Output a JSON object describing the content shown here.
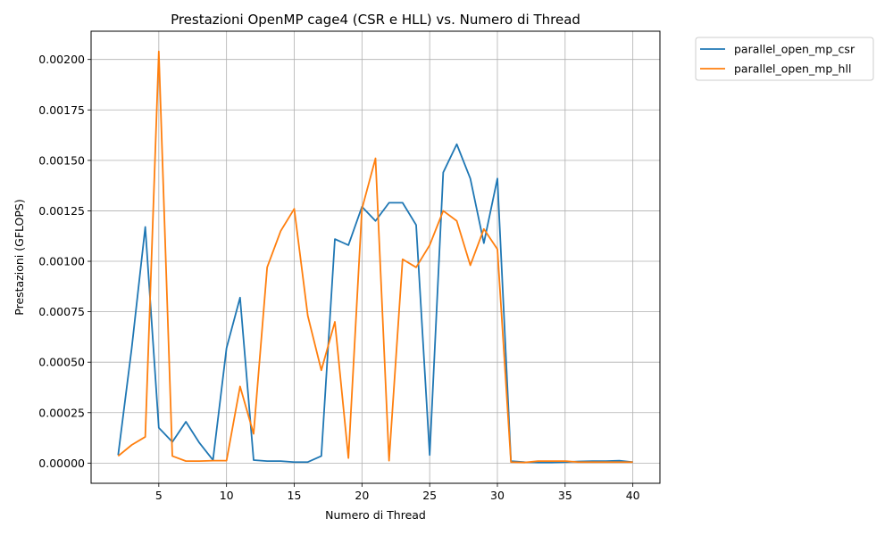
{
  "chart_data": {
    "type": "line",
    "title": "Prestazioni OpenMP cage4 (CSR e HLL) vs. Numero di Thread",
    "xlabel": "Numero di Thread",
    "ylabel": "Prestazioni (GFLOPS)",
    "xlim": [
      0,
      42
    ],
    "ylim": [
      -0.0001,
      0.00214
    ],
    "xticks": [
      5,
      10,
      15,
      20,
      25,
      30,
      35,
      40
    ],
    "xtick_labels": [
      "5",
      "10",
      "15",
      "20",
      "25",
      "30",
      "35",
      "40"
    ],
    "yticks": [
      0,
      0.00025,
      0.0005,
      0.00075,
      0.001,
      0.00125,
      0.0015,
      0.00175,
      0.002
    ],
    "ytick_labels": [
      "0.00000",
      "0.00025",
      "0.00050",
      "0.00075",
      "0.00100",
      "0.00125",
      "0.00150",
      "0.00175",
      "0.00200"
    ],
    "grid": true,
    "legend_position": "outside top-right",
    "x": [
      2,
      3,
      4,
      5,
      6,
      7,
      8,
      9,
      10,
      11,
      12,
      13,
      14,
      15,
      16,
      17,
      18,
      19,
      20,
      21,
      22,
      23,
      24,
      25,
      26,
      27,
      28,
      29,
      30,
      31,
      32,
      33,
      34,
      35,
      36,
      37,
      38,
      39,
      40
    ],
    "series": [
      {
        "name": "parallel_open_mp_csr",
        "color": "#1f77b4",
        "values": [
          4e-05,
          0.00057,
          0.00117,
          0.000175,
          0.000105,
          0.000205,
          0.0001,
          1.5e-05,
          0.00057,
          0.00082,
          1.5e-05,
          1e-05,
          1e-05,
          5e-06,
          5e-06,
          3.5e-05,
          0.00111,
          0.00108,
          0.00127,
          0.0012,
          0.00129,
          0.00129,
          0.00118,
          4e-05,
          0.00144,
          0.00158,
          0.00141,
          0.00109,
          0.00141,
          1e-05,
          5e-06,
          3e-06,
          3e-06,
          5e-06,
          8e-06,
          1e-05,
          1e-05,
          1.2e-05,
          5e-06
        ]
      },
      {
        "name": "parallel_open_mp_hll",
        "color": "#ff7f0e",
        "values": [
          3.5e-05,
          9e-05,
          0.00013,
          0.00204,
          3.5e-05,
          1e-05,
          1e-05,
          1.2e-05,
          1.2e-05,
          0.00038,
          0.000145,
          0.00097,
          0.00115,
          0.00126,
          0.00073,
          0.00046,
          0.0007,
          2.5e-05,
          0.00126,
          0.00151,
          1.2e-05,
          0.00101,
          0.00097,
          0.00108,
          0.00125,
          0.0012,
          0.00098,
          0.00116,
          0.00106,
          5e-06,
          3e-06,
          1e-05,
          1e-05,
          1e-05,
          5e-06,
          5e-06,
          5e-06,
          5e-06,
          5e-06
        ]
      }
    ]
  }
}
